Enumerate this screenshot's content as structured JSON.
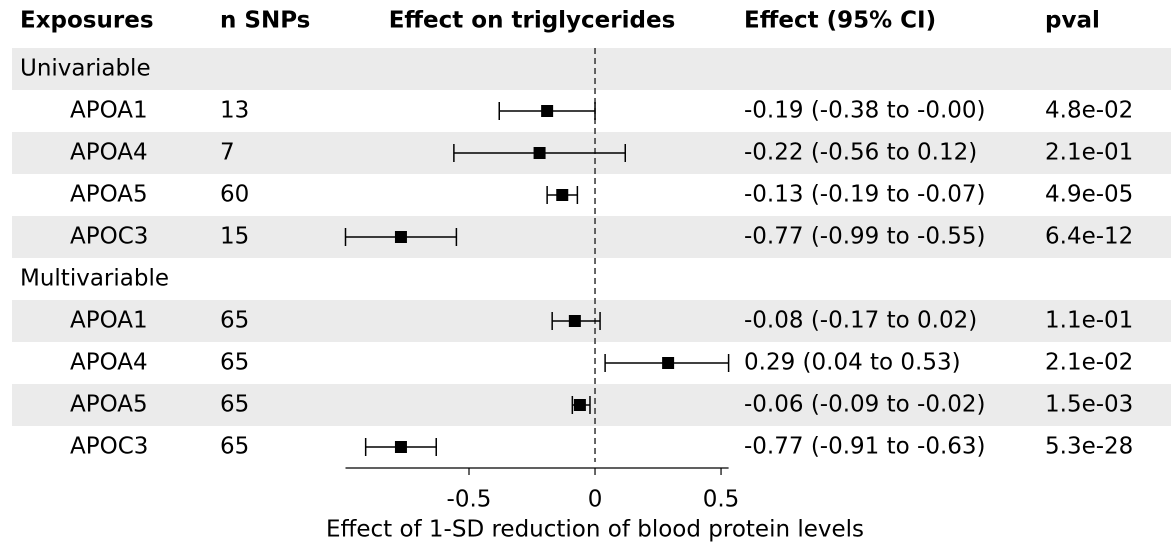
{
  "chart_data": {
    "type": "forest",
    "columns": [
      "Exposures",
      "n SNPs",
      "Effect on triglycerides",
      "Effect (95% CI)",
      "pval"
    ],
    "xlabel": "Effect of 1-SD reduction of blood protein levels",
    "xlim": [
      -0.99,
      0.53
    ],
    "xticks": [
      -0.5,
      0,
      0.5
    ],
    "reference_line": 0,
    "groups": [
      {
        "name": "Univariable",
        "rows": [
          {
            "exposure": "APOA1",
            "n_snps": 13,
            "estimate": -0.19,
            "lower": -0.38,
            "upper": 0,
            "ci_label": "-0.19 (-0.38 to -0.00)",
            "pval": "4.8e-02"
          },
          {
            "exposure": "APOA4",
            "n_snps": 7,
            "estimate": -0.22,
            "lower": -0.56,
            "upper": 0.12,
            "ci_label": "-0.22 (-0.56 to 0.12)",
            "pval": "2.1e-01"
          },
          {
            "exposure": "APOA5",
            "n_snps": 60,
            "estimate": -0.13,
            "lower": -0.19,
            "upper": -0.07,
            "ci_label": "-0.13 (-0.19 to -0.07)",
            "pval": "4.9e-05"
          },
          {
            "exposure": "APOC3",
            "n_snps": 15,
            "estimate": -0.77,
            "lower": -0.99,
            "upper": -0.55,
            "ci_label": "-0.77 (-0.99 to -0.55)",
            "pval": "6.4e-12"
          }
        ]
      },
      {
        "name": "Multivariable",
        "rows": [
          {
            "exposure": "APOA1",
            "n_snps": 65,
            "estimate": -0.08,
            "lower": -0.17,
            "upper": 0.02,
            "ci_label": "-0.08 (-0.17 to 0.02)",
            "pval": "1.1e-01"
          },
          {
            "exposure": "APOA4",
            "n_snps": 65,
            "estimate": 0.29,
            "lower": 0.04,
            "upper": 0.53,
            "ci_label": "0.29 (0.04 to 0.53)",
            "pval": "2.1e-02"
          },
          {
            "exposure": "APOA5",
            "n_snps": 65,
            "estimate": -0.06,
            "lower": -0.09,
            "upper": -0.02,
            "ci_label": "-0.06 (-0.09 to -0.02)",
            "pval": "1.5e-03"
          },
          {
            "exposure": "APOC3",
            "n_snps": 65,
            "estimate": -0.77,
            "lower": -0.91,
            "upper": -0.63,
            "ci_label": "-0.77 (-0.91 to -0.63)",
            "pval": "5.3e-28"
          }
        ]
      }
    ]
  }
}
